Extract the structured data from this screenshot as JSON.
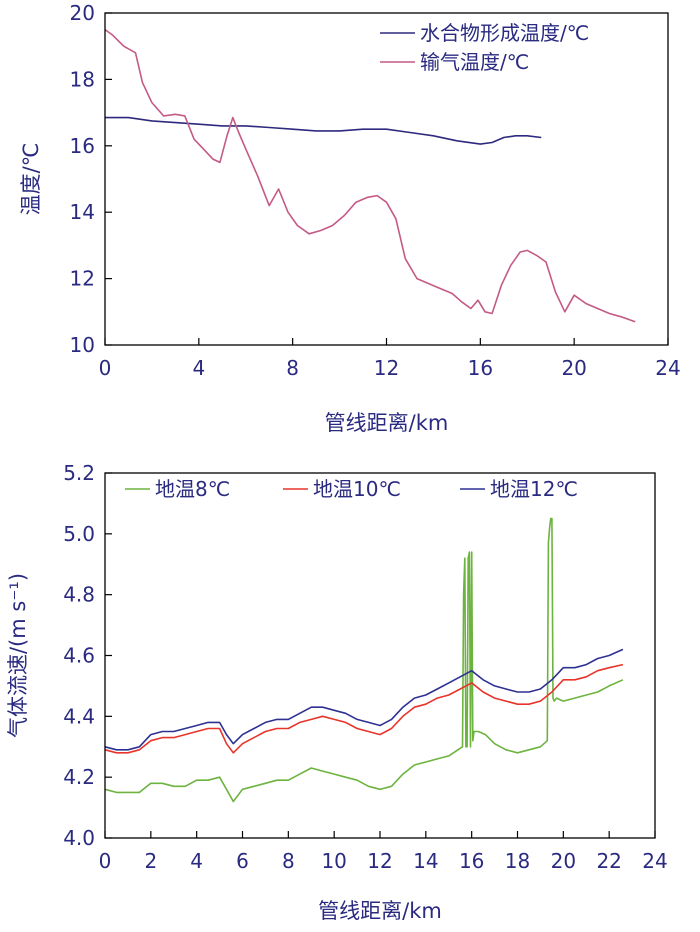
{
  "chart_data": [
    {
      "type": "line",
      "xlabel": "管线距离/km",
      "ylabel": "温度/℃",
      "xlim": [
        0,
        24
      ],
      "ylim": [
        10,
        20
      ],
      "xticks": [
        "0",
        "4",
        "8",
        "12",
        "16",
        "20",
        "24"
      ],
      "yticks": [
        "10",
        "12",
        "14",
        "16",
        "18",
        "20"
      ],
      "legend_position": "top-right",
      "grid": false,
      "series": [
        {
          "name": "水合物形成温度/℃",
          "color": "#2e2a7e",
          "x": [
            0,
            1,
            2,
            3,
            4,
            5,
            6,
            7,
            8,
            9,
            10,
            11,
            12,
            13,
            14,
            15,
            16,
            16.5,
            17,
            17.5,
            18,
            18.6
          ],
          "y": [
            16.85,
            16.85,
            16.75,
            16.7,
            16.65,
            16.6,
            16.6,
            16.55,
            16.5,
            16.45,
            16.45,
            16.5,
            16.5,
            16.4,
            16.3,
            16.15,
            16.05,
            16.1,
            16.25,
            16.3,
            16.3,
            16.25
          ]
        },
        {
          "name": "输气温度/℃",
          "color": "#c45a86",
          "x": [
            0,
            0.3,
            0.8,
            1.3,
            1.6,
            2.0,
            2.5,
            3.0,
            3.4,
            3.8,
            4.2,
            4.6,
            4.9,
            5.2,
            5.45,
            5.7,
            6.0,
            6.5,
            7.0,
            7.4,
            7.8,
            8.2,
            8.7,
            9.2,
            9.7,
            10.2,
            10.7,
            11.2,
            11.6,
            12.0,
            12.4,
            12.8,
            13.3,
            13.8,
            14.3,
            14.8,
            15.2,
            15.6,
            15.9,
            16.2,
            16.5,
            16.9,
            17.3,
            17.7,
            18.0,
            18.4,
            18.8,
            19.2,
            19.6,
            20.0,
            20.5,
            21.0,
            21.5,
            22.0,
            22.6
          ],
          "y": [
            19.5,
            19.35,
            19.0,
            18.8,
            17.9,
            17.3,
            16.9,
            16.95,
            16.9,
            16.2,
            15.9,
            15.6,
            15.5,
            16.3,
            16.85,
            16.4,
            15.9,
            15.1,
            14.2,
            14.7,
            14.0,
            13.6,
            13.35,
            13.45,
            13.6,
            13.9,
            14.3,
            14.45,
            14.5,
            14.3,
            13.8,
            12.6,
            12.0,
            11.85,
            11.7,
            11.55,
            11.3,
            11.1,
            11.35,
            11.0,
            10.95,
            11.8,
            12.4,
            12.8,
            12.85,
            12.7,
            12.5,
            11.6,
            11.0,
            11.5,
            11.25,
            11.1,
            10.95,
            10.85,
            10.7
          ]
        }
      ]
    },
    {
      "type": "line",
      "xlabel": "管线距离/km",
      "ylabel": "气体流速/(m s⁻¹)",
      "xlim": [
        0,
        24
      ],
      "ylim": [
        4.0,
        5.2
      ],
      "xticks": [
        "0",
        "2",
        "4",
        "6",
        "8",
        "10",
        "12",
        "14",
        "16",
        "18",
        "20",
        "22",
        "24"
      ],
      "yticks": [
        "4.0",
        "4.2",
        "4.4",
        "4.6",
        "4.8",
        "5.0",
        "5.2"
      ],
      "legend_position": "top",
      "grid": false,
      "series": [
        {
          "name": "地温8℃",
          "color": "#6db33f",
          "x": [
            0,
            0.5,
            1.0,
            1.5,
            2.0,
            2.5,
            3.0,
            3.5,
            4.0,
            4.5,
            5.0,
            5.3,
            5.6,
            6.0,
            6.5,
            7.0,
            7.5,
            8.0,
            8.5,
            9.0,
            9.5,
            10.0,
            10.5,
            11.0,
            11.5,
            12.0,
            12.5,
            13.0,
            13.5,
            14.0,
            14.5,
            15.0,
            15.4,
            15.6,
            15.65,
            15.7,
            15.75,
            15.8,
            15.85,
            15.9,
            15.95,
            16.0,
            16.05,
            16.1,
            16.3,
            16.6,
            17.0,
            17.5,
            18.0,
            18.5,
            19.0,
            19.3,
            19.35,
            19.4,
            19.45,
            19.5,
            19.55,
            19.6,
            19.7,
            20.0,
            20.5,
            21.0,
            21.5,
            22.0,
            22.6
          ],
          "y": [
            4.16,
            4.15,
            4.15,
            4.15,
            4.18,
            4.18,
            4.17,
            4.17,
            4.19,
            4.19,
            4.2,
            4.16,
            4.12,
            4.16,
            4.17,
            4.18,
            4.19,
            4.19,
            4.21,
            4.23,
            4.22,
            4.21,
            4.2,
            4.19,
            4.17,
            4.16,
            4.17,
            4.21,
            4.24,
            4.25,
            4.26,
            4.27,
            4.29,
            4.3,
            4.8,
            4.92,
            4.3,
            4.3,
            4.92,
            4.94,
            4.3,
            4.94,
            4.32,
            4.35,
            4.35,
            4.34,
            4.31,
            4.29,
            4.28,
            4.29,
            4.3,
            4.32,
            4.97,
            5.02,
            5.05,
            5.05,
            4.46,
            4.45,
            4.46,
            4.45,
            4.46,
            4.47,
            4.48,
            4.5,
            4.52
          ]
        },
        {
          "name": "地温10℃",
          "color": "#e8342a",
          "x": [
            0,
            0.5,
            1.0,
            1.5,
            2.0,
            2.5,
            3.0,
            3.5,
            4.0,
            4.5,
            5.0,
            5.3,
            5.6,
            6.0,
            6.5,
            7.0,
            7.5,
            8.0,
            8.5,
            9.0,
            9.5,
            10.0,
            10.5,
            11.0,
            11.5,
            12.0,
            12.5,
            13.0,
            13.5,
            14.0,
            14.5,
            15.0,
            15.5,
            16.0,
            16.5,
            17.0,
            17.5,
            18.0,
            18.5,
            19.0,
            19.5,
            20.0,
            20.5,
            21.0,
            21.5,
            22.0,
            22.6
          ],
          "y": [
            4.29,
            4.28,
            4.28,
            4.29,
            4.32,
            4.33,
            4.33,
            4.34,
            4.35,
            4.36,
            4.36,
            4.31,
            4.28,
            4.31,
            4.33,
            4.35,
            4.36,
            4.36,
            4.38,
            4.39,
            4.4,
            4.39,
            4.38,
            4.36,
            4.35,
            4.34,
            4.36,
            4.4,
            4.43,
            4.44,
            4.46,
            4.47,
            4.49,
            4.51,
            4.48,
            4.46,
            4.45,
            4.44,
            4.44,
            4.45,
            4.48,
            4.52,
            4.52,
            4.53,
            4.55,
            4.56,
            4.57
          ]
        },
        {
          "name": "地温12℃",
          "color": "#2e3192",
          "x": [
            0,
            0.5,
            1.0,
            1.5,
            2.0,
            2.5,
            3.0,
            3.5,
            4.0,
            4.5,
            5.0,
            5.3,
            5.6,
            6.0,
            6.5,
            7.0,
            7.5,
            8.0,
            8.5,
            9.0,
            9.5,
            10.0,
            10.5,
            11.0,
            11.5,
            12.0,
            12.5,
            13.0,
            13.5,
            14.0,
            14.5,
            15.0,
            15.5,
            16.0,
            16.5,
            17.0,
            17.5,
            18.0,
            18.5,
            19.0,
            19.5,
            20.0,
            20.5,
            21.0,
            21.5,
            22.0,
            22.6
          ],
          "y": [
            4.3,
            4.29,
            4.29,
            4.3,
            4.34,
            4.35,
            4.35,
            4.36,
            4.37,
            4.38,
            4.38,
            4.34,
            4.31,
            4.34,
            4.36,
            4.38,
            4.39,
            4.39,
            4.41,
            4.43,
            4.43,
            4.42,
            4.41,
            4.39,
            4.38,
            4.37,
            4.39,
            4.43,
            4.46,
            4.47,
            4.49,
            4.51,
            4.53,
            4.55,
            4.52,
            4.5,
            4.49,
            4.48,
            4.48,
            4.49,
            4.52,
            4.56,
            4.56,
            4.57,
            4.59,
            4.6,
            4.62
          ]
        }
      ]
    }
  ]
}
